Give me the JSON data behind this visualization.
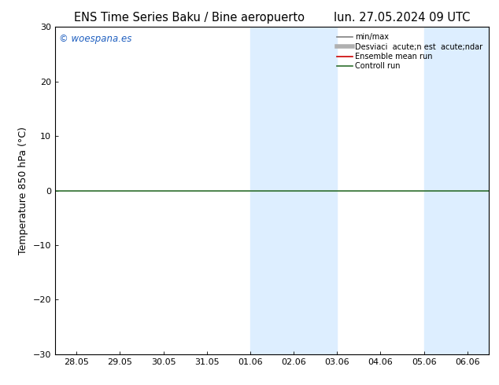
{
  "title_left": "ENS Time Series Baku / Bine aeropuerto",
  "title_right": "lun. 27.05.2024 09 UTC",
  "ylabel": "Temperature 850 hPa (°C)",
  "ylim": [
    -30,
    30
  ],
  "yticks": [
    -30,
    -20,
    -10,
    0,
    10,
    20,
    30
  ],
  "x_labels": [
    "28.05",
    "29.05",
    "30.05",
    "31.05",
    "01.06",
    "02.06",
    "03.06",
    "04.06",
    "05.06",
    "06.06"
  ],
  "x_values": [
    0,
    1,
    2,
    3,
    4,
    5,
    6,
    7,
    8,
    9
  ],
  "xlim": [
    -0.5,
    9.5
  ],
  "watermark": "© woespana.es",
  "legend_entries": [
    "min/max",
    "Desviaci  acute;n est  acute;ndar",
    "Ensemble mean run",
    "Controll run"
  ],
  "shaded_regions": [
    {
      "xmin": 4.0,
      "xmax": 6.0,
      "color": "#ddeeff"
    },
    {
      "xmin": 8.0,
      "xmax": 9.5,
      "color": "#ddeeff"
    }
  ],
  "hline_y": 0,
  "hline_color": "#2d6e2d",
  "background_color": "#ffffff",
  "plot_bg_color": "#ffffff",
  "title_fontsize": 10.5,
  "label_fontsize": 9,
  "tick_fontsize": 8,
  "legend_line_colors": [
    "#808080",
    "#b0b0b0",
    "#cc0000",
    "#2d6e2d"
  ],
  "watermark_color": "#2060c0"
}
